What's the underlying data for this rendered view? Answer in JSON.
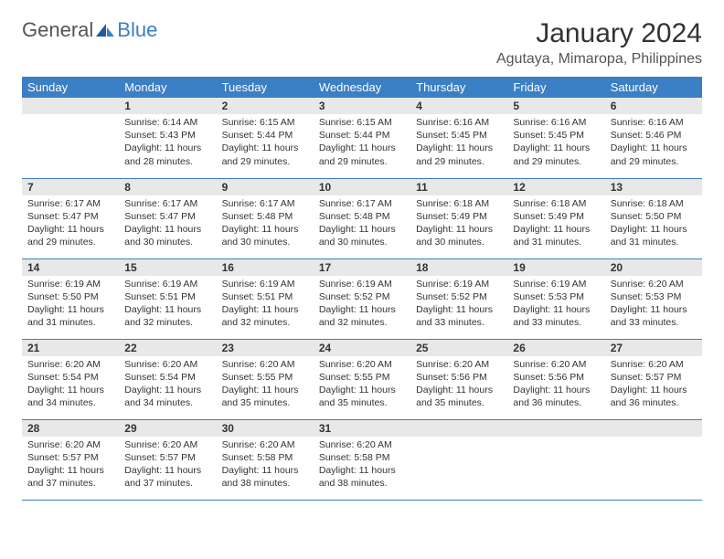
{
  "logo": {
    "text1": "General",
    "text2": "Blue"
  },
  "title": "January 2024",
  "location": "Agutaya, Mimaropa, Philippines",
  "colors": {
    "header_bg": "#3b7fc4",
    "header_text": "#ffffff",
    "daynum_bg": "#e8e8e8",
    "text": "#333333",
    "border": "#3b7fc4",
    "background": "#ffffff"
  },
  "weekday_labels": [
    "Sunday",
    "Monday",
    "Tuesday",
    "Wednesday",
    "Thursday",
    "Friday",
    "Saturday"
  ],
  "weeks": [
    [
      null,
      {
        "d": "1",
        "sr": "6:14 AM",
        "ss": "5:43 PM",
        "dl": "11 hours and 28 minutes."
      },
      {
        "d": "2",
        "sr": "6:15 AM",
        "ss": "5:44 PM",
        "dl": "11 hours and 29 minutes."
      },
      {
        "d": "3",
        "sr": "6:15 AM",
        "ss": "5:44 PM",
        "dl": "11 hours and 29 minutes."
      },
      {
        "d": "4",
        "sr": "6:16 AM",
        "ss": "5:45 PM",
        "dl": "11 hours and 29 minutes."
      },
      {
        "d": "5",
        "sr": "6:16 AM",
        "ss": "5:45 PM",
        "dl": "11 hours and 29 minutes."
      },
      {
        "d": "6",
        "sr": "6:16 AM",
        "ss": "5:46 PM",
        "dl": "11 hours and 29 minutes."
      }
    ],
    [
      {
        "d": "7",
        "sr": "6:17 AM",
        "ss": "5:47 PM",
        "dl": "11 hours and 29 minutes."
      },
      {
        "d": "8",
        "sr": "6:17 AM",
        "ss": "5:47 PM",
        "dl": "11 hours and 30 minutes."
      },
      {
        "d": "9",
        "sr": "6:17 AM",
        "ss": "5:48 PM",
        "dl": "11 hours and 30 minutes."
      },
      {
        "d": "10",
        "sr": "6:17 AM",
        "ss": "5:48 PM",
        "dl": "11 hours and 30 minutes."
      },
      {
        "d": "11",
        "sr": "6:18 AM",
        "ss": "5:49 PM",
        "dl": "11 hours and 30 minutes."
      },
      {
        "d": "12",
        "sr": "6:18 AM",
        "ss": "5:49 PM",
        "dl": "11 hours and 31 minutes."
      },
      {
        "d": "13",
        "sr": "6:18 AM",
        "ss": "5:50 PM",
        "dl": "11 hours and 31 minutes."
      }
    ],
    [
      {
        "d": "14",
        "sr": "6:19 AM",
        "ss": "5:50 PM",
        "dl": "11 hours and 31 minutes."
      },
      {
        "d": "15",
        "sr": "6:19 AM",
        "ss": "5:51 PM",
        "dl": "11 hours and 32 minutes."
      },
      {
        "d": "16",
        "sr": "6:19 AM",
        "ss": "5:51 PM",
        "dl": "11 hours and 32 minutes."
      },
      {
        "d": "17",
        "sr": "6:19 AM",
        "ss": "5:52 PM",
        "dl": "11 hours and 32 minutes."
      },
      {
        "d": "18",
        "sr": "6:19 AM",
        "ss": "5:52 PM",
        "dl": "11 hours and 33 minutes."
      },
      {
        "d": "19",
        "sr": "6:19 AM",
        "ss": "5:53 PM",
        "dl": "11 hours and 33 minutes."
      },
      {
        "d": "20",
        "sr": "6:20 AM",
        "ss": "5:53 PM",
        "dl": "11 hours and 33 minutes."
      }
    ],
    [
      {
        "d": "21",
        "sr": "6:20 AM",
        "ss": "5:54 PM",
        "dl": "11 hours and 34 minutes."
      },
      {
        "d": "22",
        "sr": "6:20 AM",
        "ss": "5:54 PM",
        "dl": "11 hours and 34 minutes."
      },
      {
        "d": "23",
        "sr": "6:20 AM",
        "ss": "5:55 PM",
        "dl": "11 hours and 35 minutes."
      },
      {
        "d": "24",
        "sr": "6:20 AM",
        "ss": "5:55 PM",
        "dl": "11 hours and 35 minutes."
      },
      {
        "d": "25",
        "sr": "6:20 AM",
        "ss": "5:56 PM",
        "dl": "11 hours and 35 minutes."
      },
      {
        "d": "26",
        "sr": "6:20 AM",
        "ss": "5:56 PM",
        "dl": "11 hours and 36 minutes."
      },
      {
        "d": "27",
        "sr": "6:20 AM",
        "ss": "5:57 PM",
        "dl": "11 hours and 36 minutes."
      }
    ],
    [
      {
        "d": "28",
        "sr": "6:20 AM",
        "ss": "5:57 PM",
        "dl": "11 hours and 37 minutes."
      },
      {
        "d": "29",
        "sr": "6:20 AM",
        "ss": "5:57 PM",
        "dl": "11 hours and 37 minutes."
      },
      {
        "d": "30",
        "sr": "6:20 AM",
        "ss": "5:58 PM",
        "dl": "11 hours and 38 minutes."
      },
      {
        "d": "31",
        "sr": "6:20 AM",
        "ss": "5:58 PM",
        "dl": "11 hours and 38 minutes."
      },
      null,
      null,
      null
    ]
  ],
  "labels": {
    "sunrise": "Sunrise:",
    "sunset": "Sunset:",
    "daylight": "Daylight:"
  }
}
